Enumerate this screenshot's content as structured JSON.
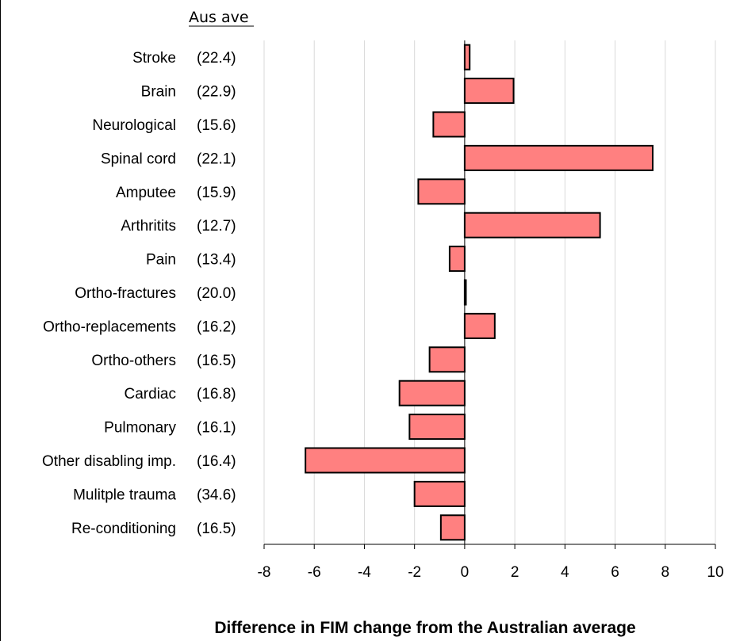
{
  "chart_data": {
    "type": "bar",
    "orientation": "horizontal",
    "header": "Aus ave",
    "categories": [
      "Stroke",
      "Brain",
      "Neurological",
      "Spinal cord",
      "Amputee",
      "Arthritits",
      "Pain",
      "Ortho-fractures",
      "Ortho-replacements",
      "Ortho-others",
      "Cardiac",
      "Pulmonary",
      "Other disabling imp.",
      "Mulitple trauma",
      "Re-conditioning"
    ],
    "australian_averages": [
      "(22.4)",
      "(22.9)",
      "(15.6)",
      "(22.1)",
      "(15.9)",
      "(12.7)",
      "(13.4)",
      "(20.0)",
      "(16.2)",
      "(16.5)",
      "(16.8)",
      "(16.1)",
      "(16.4)",
      "(34.6)",
      "(16.5)"
    ],
    "values": [
      0.2,
      1.95,
      -1.25,
      7.5,
      -1.85,
      5.4,
      -0.6,
      0.05,
      1.2,
      -1.4,
      -2.6,
      -2.2,
      -6.35,
      -2.0,
      -0.95
    ],
    "xlim": [
      -8,
      10
    ],
    "xticks": [
      "-8",
      "-6",
      "-4",
      "-2",
      "0",
      "2",
      "4",
      "6",
      "8",
      "10"
    ],
    "xlabel": "Difference in FIM change from the Australian average",
    "grid": "vertical",
    "colors": {
      "bar_fill": "#ff8080",
      "bar_stroke": "#000000",
      "grid": "#d9d9d9"
    }
  }
}
